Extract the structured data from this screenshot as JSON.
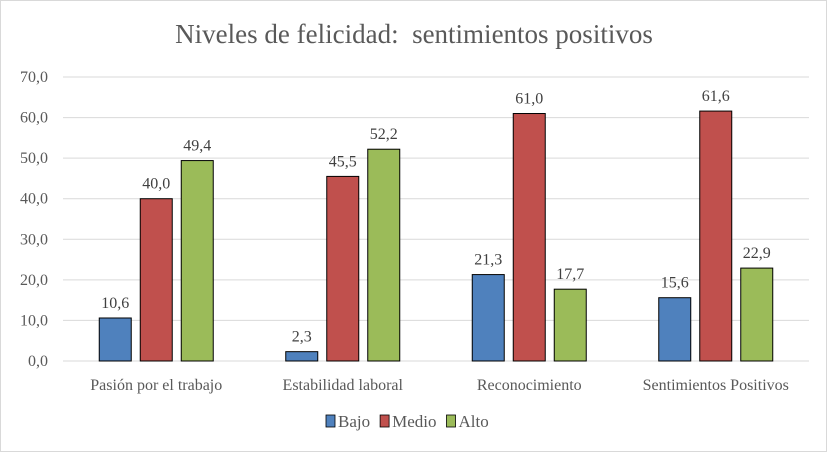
{
  "chart_data": {
    "type": "bar",
    "title": "Niveles de felicidad:  sentimientos positivos",
    "categories": [
      "Pasión por el trabajo",
      "Estabilidad laboral",
      "Reconocimiento",
      "Sentimientos Positivos"
    ],
    "series": [
      {
        "name": "Bajo",
        "color": "#4F81BD",
        "values": [
          10.6,
          2.3,
          21.3,
          15.6
        ]
      },
      {
        "name": "Medio",
        "color": "#C0504D",
        "values": [
          40.0,
          45.5,
          61.0,
          61.6
        ]
      },
      {
        "name": "Alto",
        "color": "#9BBB59",
        "values": [
          49.4,
          52.2,
          17.7,
          22.9
        ]
      }
    ],
    "ylim": [
      0,
      70
    ],
    "yticks": [
      "0,0",
      "10,0",
      "20,0",
      "30,0",
      "40,0",
      "50,0",
      "60,0",
      "70,0"
    ],
    "data_labels": [
      [
        "10,6",
        "2,3",
        "21,3",
        "15,6"
      ],
      [
        "40,0",
        "45,5",
        "61,0",
        "61,6"
      ],
      [
        "49,4",
        "52,2",
        "17,7",
        "22,9"
      ]
    ],
    "grid": true,
    "legend": "bottom",
    "xlabel": "",
    "ylabel": ""
  }
}
